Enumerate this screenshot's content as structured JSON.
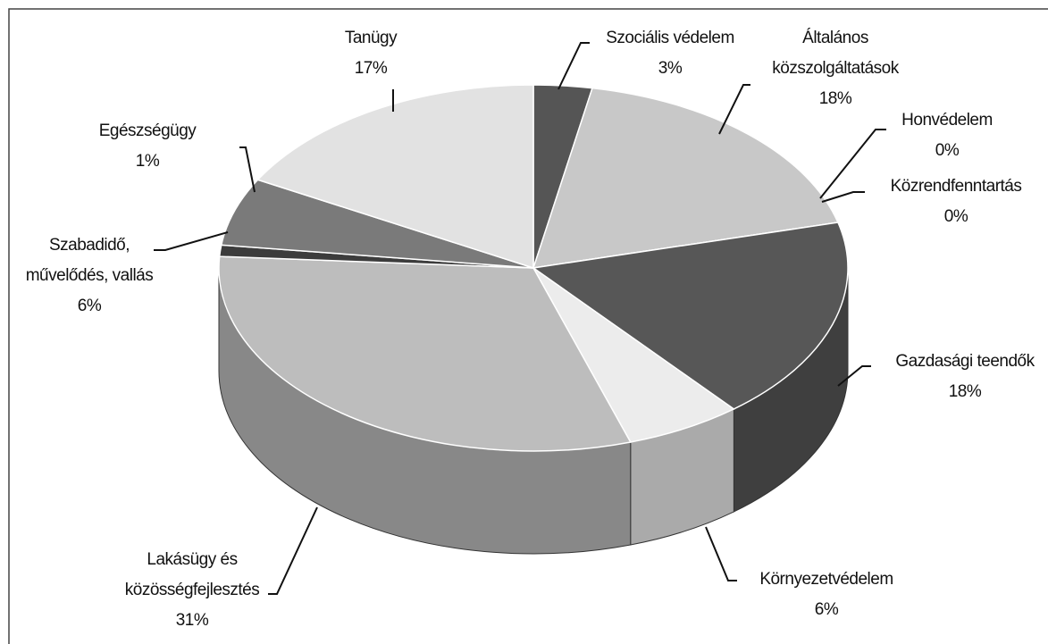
{
  "chart_data": {
    "type": "pie",
    "categories": [
      "Szociális védelem",
      "Általános közszolgáltatások",
      "Honvédelem",
      "Közrendfenntartás",
      "Gazdasági teendők",
      "Környezetvédelem",
      "Lakásügy és közösségfejlesztés",
      "Egészségügy",
      "Szabadidő, művelődés, vallás",
      "Tanügy"
    ],
    "values": [
      3,
      18,
      0,
      0,
      18,
      6,
      31,
      1,
      6,
      17
    ],
    "value_labels": [
      "3%",
      "18%",
      "0%",
      "0%",
      "18%",
      "6%",
      "31%",
      "1%",
      "6%",
      "17%"
    ],
    "colors": [
      "#555555",
      "#c8c8c8",
      "#444444",
      "#444444",
      "#575757",
      "#ececec",
      "#bdbdbd",
      "#3c3c3c",
      "#7a7a7a",
      "#e2e2e2"
    ]
  }
}
